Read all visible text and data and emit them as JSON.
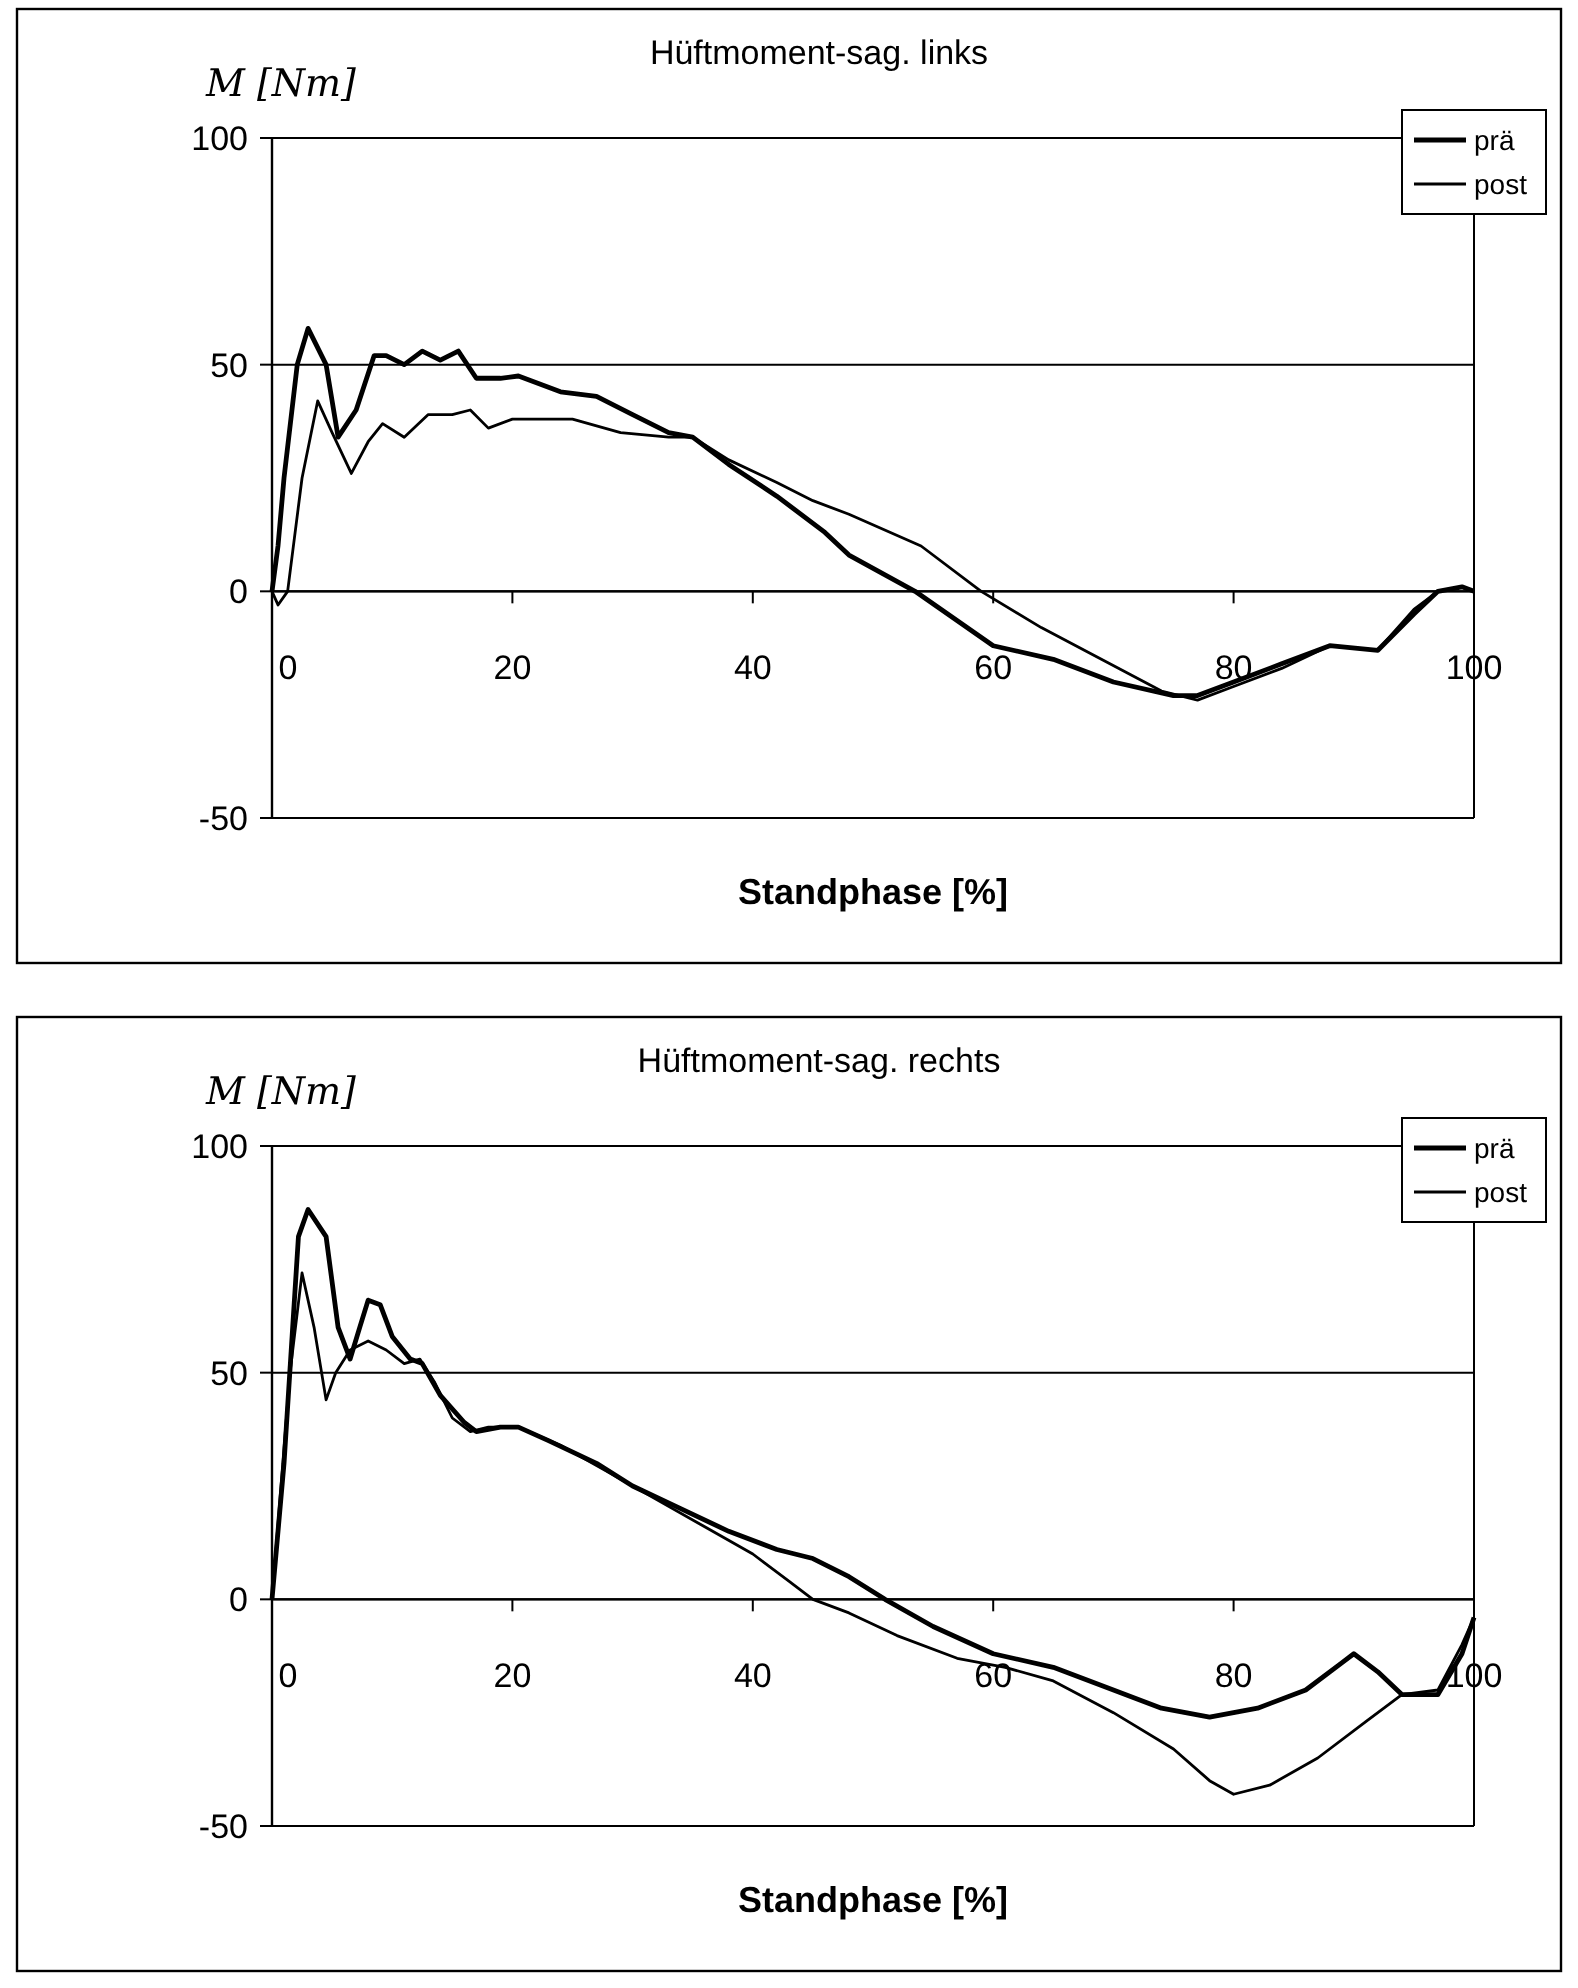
{
  "chart_data": [
    {
      "type": "line",
      "title": "Hüftmoment-sag. links",
      "ylabel": "M [Nm]",
      "xlabel": "Standphase [%]",
      "xlim": [
        0,
        100
      ],
      "ylim": [
        -50,
        100
      ],
      "xticks": [
        0,
        20,
        40,
        60,
        80,
        100
      ],
      "yticks": [
        -50,
        0,
        50,
        100
      ],
      "grid": "y",
      "legend": "top right",
      "line_style": "solid",
      "marker": "none",
      "series": [
        {
          "name": "prä",
          "color": "#000000",
          "x": [
            0,
            0.5,
            1,
            2.1,
            3,
            4.5,
            5.5,
            7,
            8.5,
            9.5,
            11,
            12.5,
            14,
            15.5,
            17,
            19,
            20.5,
            24,
            27,
            30,
            33,
            35,
            38,
            42,
            46,
            48,
            53.5,
            60,
            65,
            70,
            75,
            77,
            80,
            84,
            88,
            92,
            95,
            97,
            99,
            100
          ],
          "values": [
            0,
            10,
            25,
            50,
            58,
            50,
            34,
            40,
            52,
            52,
            50,
            53,
            51,
            53,
            47,
            47,
            47.5,
            44,
            43,
            39,
            35,
            34,
            28,
            21,
            13,
            8,
            0,
            -12,
            -15,
            -20,
            -23,
            -23,
            -20,
            -16,
            -12,
            -13,
            -5,
            0,
            1,
            0
          ]
        },
        {
          "name": "post",
          "color": "#000000",
          "x": [
            0,
            0.5,
            1.3,
            2.5,
            3.8,
            5,
            6.6,
            8,
            9.2,
            11,
            13,
            15,
            16.5,
            18,
            20,
            25,
            29,
            33,
            35,
            38,
            42,
            45,
            48,
            54,
            59,
            64,
            69,
            74,
            77,
            80,
            84,
            88,
            92,
            95,
            97,
            99,
            100
          ],
          "values": [
            0,
            -3,
            0,
            25,
            42,
            35,
            26,
            33,
            37,
            34,
            39,
            39,
            40,
            36,
            38,
            38,
            35,
            34,
            34,
            29,
            24,
            20,
            17,
            10,
            0,
            -8,
            -15,
            -22,
            -24,
            -21,
            -17,
            -12,
            -13,
            -4,
            0,
            1,
            0
          ]
        }
      ]
    },
    {
      "type": "line",
      "title": "Hüftmoment-sag. rechts",
      "ylabel": "M [Nm]",
      "xlabel": "Standphase [%]",
      "xlim": [
        0,
        100
      ],
      "ylim": [
        -50,
        100
      ],
      "xticks": [
        0,
        20,
        40,
        60,
        80,
        100
      ],
      "yticks": [
        -50,
        0,
        50,
        100
      ],
      "grid": "y",
      "legend": "top right",
      "line_style": "solid",
      "marker": "none",
      "series": [
        {
          "name": "prä",
          "color": "#000000",
          "x": [
            0,
            1,
            2.2,
            3,
            4.5,
            5.5,
            6.5,
            7.3,
            8,
            9,
            10,
            11.5,
            12.5,
            14,
            16,
            17,
            19,
            20.5,
            23,
            27,
            30,
            34,
            38,
            42,
            45,
            48,
            51,
            55,
            60,
            65,
            70,
            74,
            78,
            82,
            86,
            89,
            90,
            92,
            94,
            97,
            99,
            100
          ],
          "values": [
            0,
            30,
            80,
            86,
            80,
            60,
            53,
            60,
            66,
            65,
            58,
            53,
            52,
            45,
            39,
            37,
            38,
            38,
            35,
            30,
            25,
            20,
            15,
            11,
            9,
            5,
            0,
            -6,
            -12,
            -15,
            -20,
            -24,
            -26,
            -24,
            -20,
            -14,
            -12,
            -16,
            -21,
            -21,
            -12,
            -4
          ]
        },
        {
          "name": "post",
          "color": "#000000",
          "x": [
            0,
            1.5,
            2.5,
            3.5,
            4.5,
            5.3,
            6.5,
            8,
            9.5,
            11,
            12.3,
            13.5,
            15,
            16.5,
            18,
            20.5,
            24,
            28,
            32,
            36,
            40,
            43,
            45,
            48,
            52,
            57,
            61,
            65,
            70,
            75,
            78,
            80,
            83,
            87,
            91,
            94,
            97,
            99,
            100
          ],
          "values": [
            0,
            50,
            72,
            60,
            44,
            50,
            55,
            57,
            55,
            52,
            53,
            48,
            40,
            37,
            38,
            38,
            34,
            28,
            22,
            16,
            10,
            4,
            0,
            -3,
            -8,
            -13,
            -15,
            -18,
            -25,
            -33,
            -40,
            -43,
            -41,
            -35,
            -27,
            -21,
            -20,
            -10,
            -4
          ]
        }
      ]
    }
  ]
}
